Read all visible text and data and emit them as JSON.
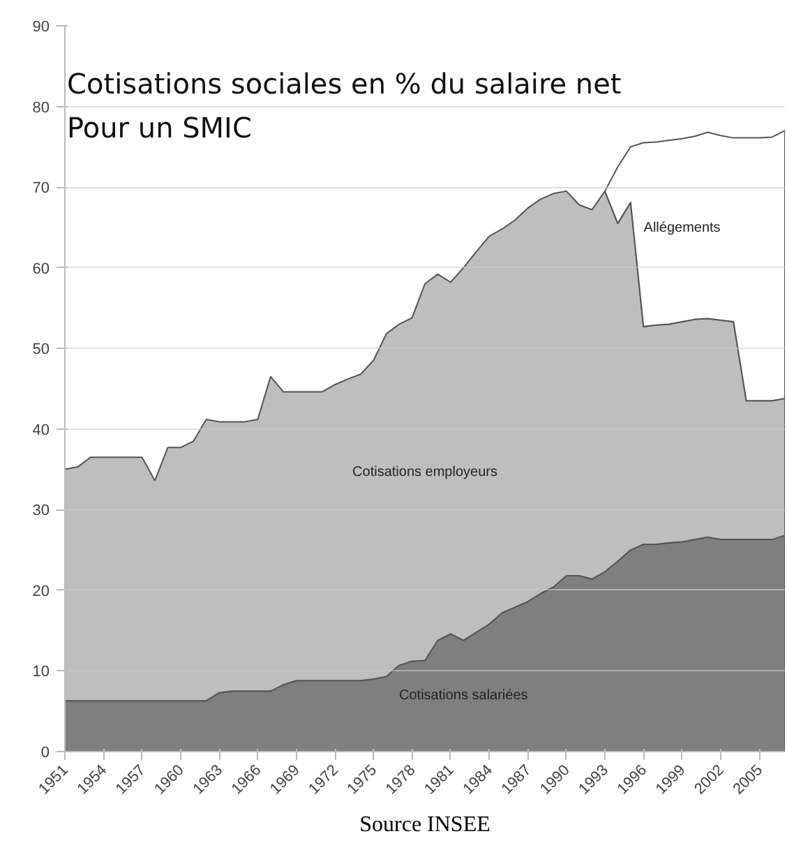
{
  "chart_data": {
    "type": "area",
    "stacked": true,
    "title": "Cotisations sociales en % du salaire net",
    "subtitle": "Pour un SMIC",
    "x": [
      1951,
      1952,
      1953,
      1954,
      1955,
      1956,
      1957,
      1958,
      1959,
      1960,
      1961,
      1962,
      1963,
      1964,
      1965,
      1966,
      1967,
      1968,
      1969,
      1970,
      1971,
      1972,
      1973,
      1974,
      1975,
      1976,
      1977,
      1978,
      1979,
      1980,
      1981,
      1982,
      1983,
      1984,
      1985,
      1986,
      1987,
      1988,
      1989,
      1990,
      1991,
      1992,
      1993,
      1994,
      1995,
      1996,
      1997,
      1998,
      1999,
      2000,
      2001,
      2002,
      2003,
      2004,
      2005,
      2006,
      2007
    ],
    "series": [
      {
        "name": "Cotisations salariées",
        "color": "#7f7f7f",
        "values": [
          6.3,
          6.3,
          6.3,
          6.3,
          6.3,
          6.3,
          6.3,
          6.3,
          6.3,
          6.3,
          6.3,
          6.3,
          7.3,
          7.5,
          7.5,
          7.5,
          7.5,
          8.3,
          8.8,
          8.8,
          8.8,
          8.8,
          8.8,
          8.8,
          9.0,
          9.3,
          10.7,
          11.2,
          11.3,
          13.8,
          14.6,
          13.8,
          14.8,
          15.8,
          17.2,
          17.9,
          18.6,
          19.6,
          20.4,
          21.8,
          21.8,
          21.4,
          22.3,
          23.6,
          25.0,
          25.7,
          25.7,
          25.9,
          26.0,
          26.3,
          26.6,
          26.3,
          26.3,
          26.3,
          26.3,
          26.3,
          26.8
        ]
      },
      {
        "name": "Cotisations employeurs",
        "color": "#bebebe",
        "values": [
          28.7,
          29.0,
          30.2,
          30.2,
          30.2,
          30.2,
          30.2,
          27.3,
          31.4,
          31.4,
          32.2,
          34.9,
          33.6,
          33.4,
          33.4,
          33.7,
          39.0,
          36.3,
          35.8,
          35.8,
          35.8,
          36.7,
          37.4,
          38.0,
          39.5,
          42.5,
          42.3,
          42.6,
          46.7,
          45.4,
          43.6,
          46.2,
          47.2,
          48.1,
          47.6,
          48.0,
          48.8,
          48.9,
          48.8,
          47.7,
          46.0,
          45.8,
          47.2,
          41.9,
          43.1,
          27.0,
          27.2,
          27.1,
          27.3,
          27.3,
          27.1,
          27.2,
          27.0,
          17.2,
          17.2,
          17.2,
          17.0
        ]
      },
      {
        "name": "Allégements",
        "color": "#ffffff",
        "values": [
          null,
          null,
          null,
          null,
          null,
          null,
          null,
          null,
          null,
          null,
          null,
          null,
          null,
          null,
          null,
          null,
          null,
          null,
          null,
          null,
          null,
          null,
          null,
          null,
          null,
          null,
          null,
          null,
          null,
          null,
          null,
          null,
          null,
          null,
          null,
          null,
          null,
          null,
          null,
          null,
          null,
          null,
          0,
          7.0,
          6.9,
          22.8,
          22.7,
          22.8,
          22.7,
          22.7,
          23.1,
          22.9,
          22.8,
          32.6,
          32.6,
          32.7,
          33.2
        ]
      }
    ],
    "xlim": [
      1951,
      2007
    ],
    "xticks": [
      1951,
      1954,
      1957,
      1960,
      1963,
      1966,
      1969,
      1972,
      1975,
      1978,
      1981,
      1984,
      1987,
      1990,
      1993,
      1996,
      1999,
      2002,
      2005
    ],
    "ylim": [
      0,
      90
    ],
    "yticks": [
      0,
      10,
      20,
      30,
      40,
      50,
      60,
      70,
      80,
      90
    ],
    "grid": "y",
    "annotations": [
      "Source INSEE"
    ]
  }
}
